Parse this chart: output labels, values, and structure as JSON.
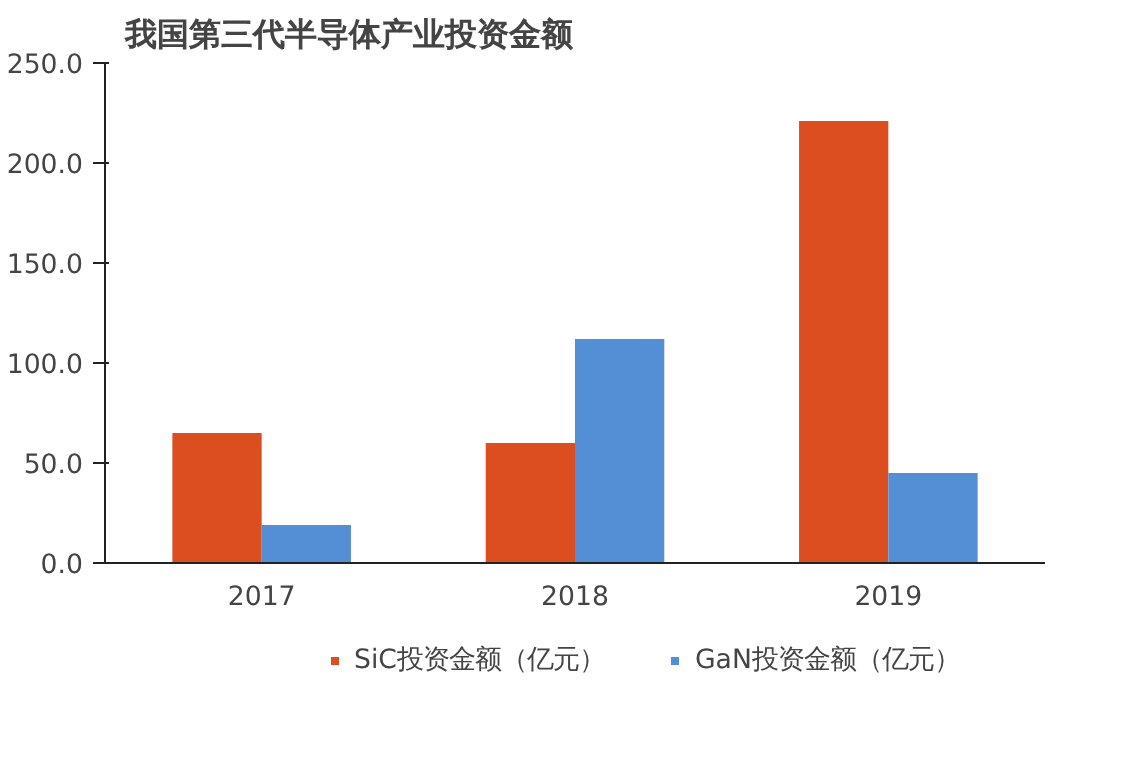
{
  "chart_data": {
    "type": "bar",
    "title": "我国第三代半导体产业投资金额",
    "categories": [
      "2017",
      "2018",
      "2019"
    ],
    "series": [
      {
        "name": "SiC投资金额（亿元）",
        "color": "#dc4e1f",
        "values": [
          65,
          60,
          221
        ]
      },
      {
        "name": "GaN投资金额（亿元）",
        "color": "#548ed4",
        "values": [
          19,
          112,
          45
        ]
      }
    ],
    "ylim": [
      0,
      250
    ],
    "yticks": [
      {
        "value": 0,
        "label": "0.0"
      },
      {
        "value": 50,
        "label": "50.0"
      },
      {
        "value": 100,
        "label": "100.0"
      },
      {
        "value": 150,
        "label": "150.0"
      },
      {
        "value": 200,
        "label": "200.0"
      },
      {
        "value": 250,
        "label": "250.0"
      }
    ],
    "grid": false,
    "legend": "bottom"
  }
}
